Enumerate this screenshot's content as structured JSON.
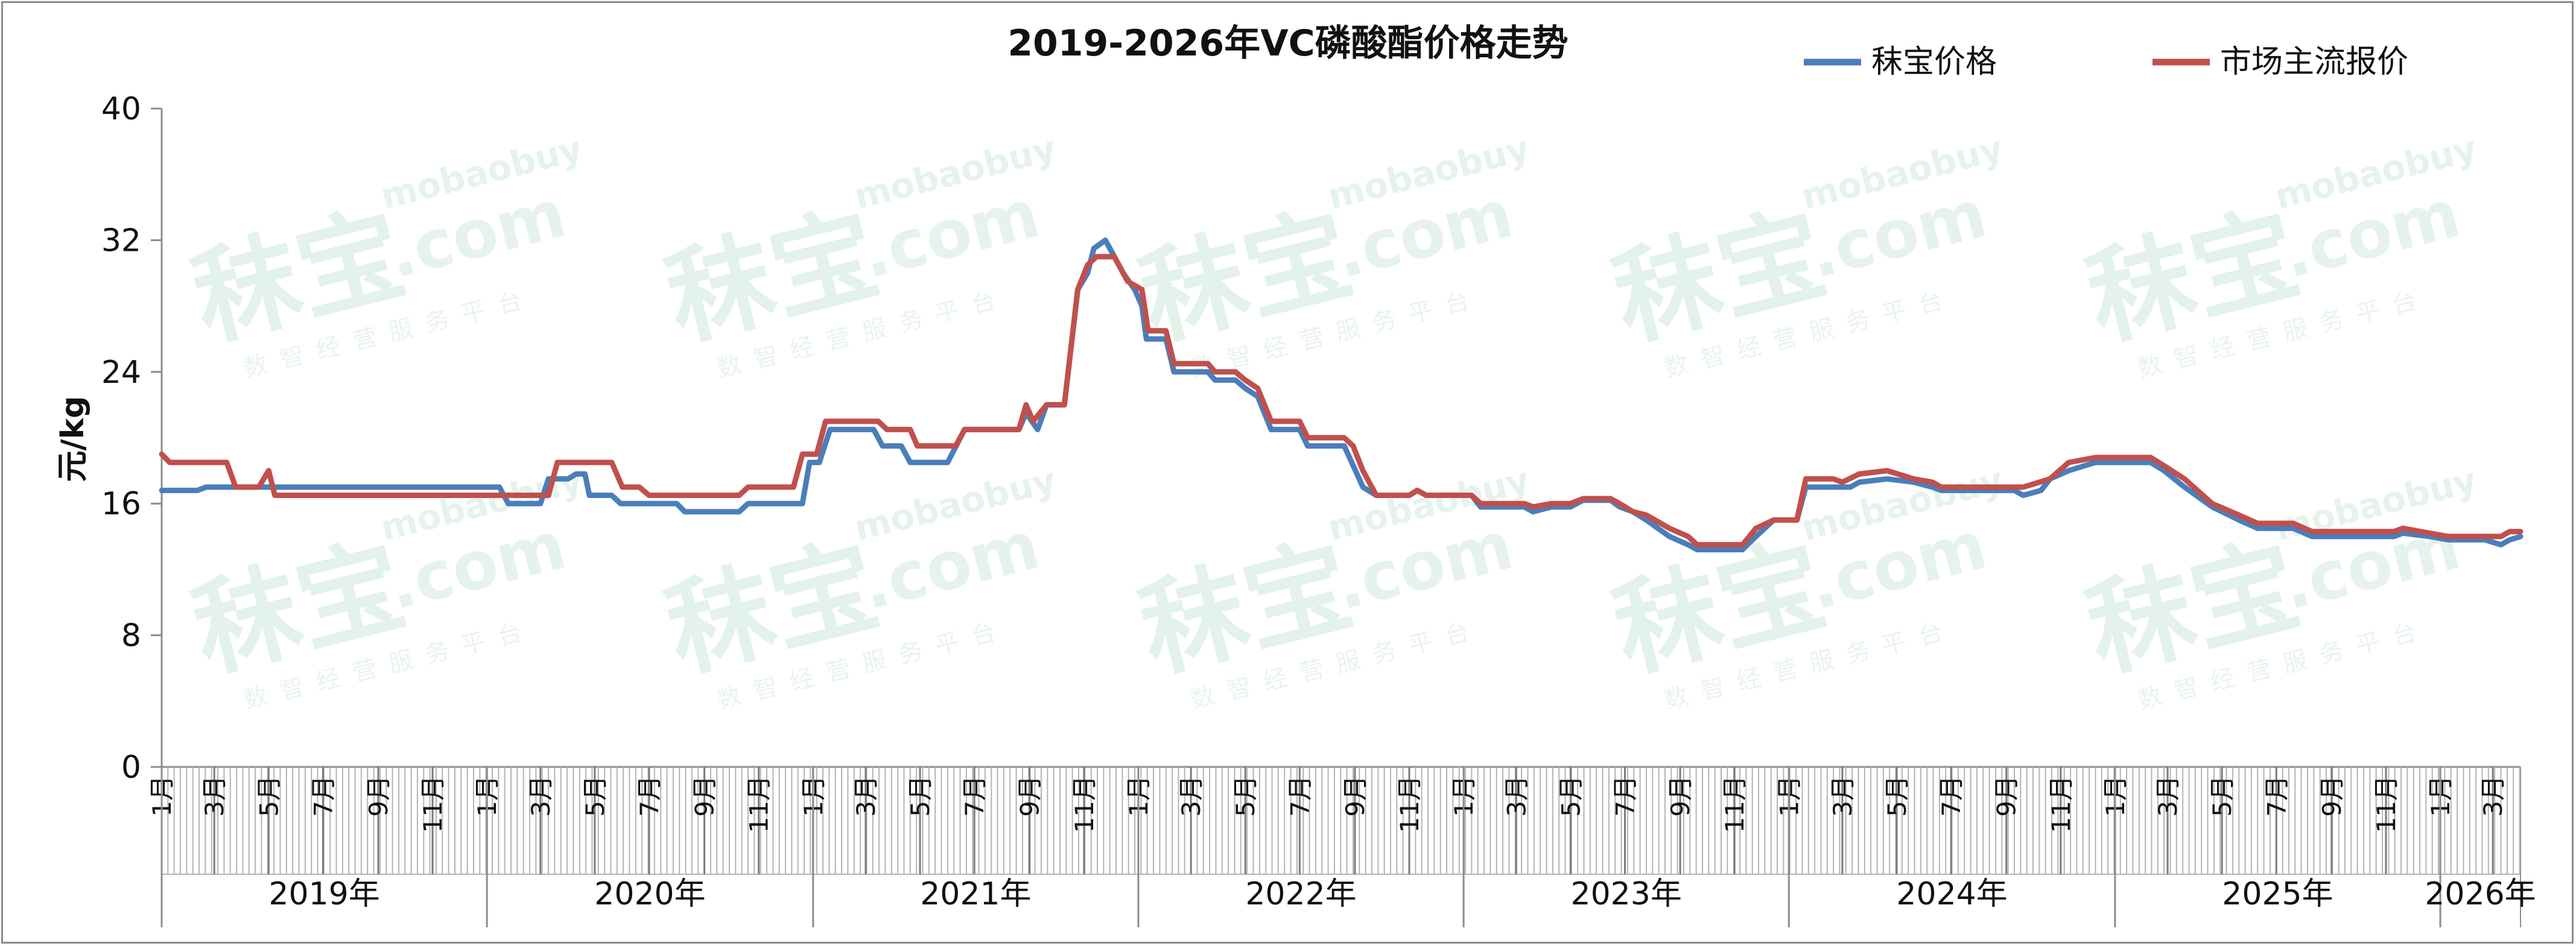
{
  "chart_data": {
    "type": "line",
    "title": "2019-2026年VC磷酸酯价格走势",
    "ylabel": "元/kg",
    "xlabel": "",
    "ylim": [
      0,
      40
    ],
    "yticks": [
      "0",
      "8",
      "16",
      "24",
      "32",
      "40"
    ],
    "grid": false,
    "legend_position": "top-right",
    "month_labels": [
      "1月",
      "3月",
      "5月",
      "7月",
      "9月",
      "11月"
    ],
    "years": [
      "2019年",
      "2020年",
      "2021年",
      "2022年",
      "2023年",
      "2024年",
      "2025年",
      "2026年"
    ],
    "x_start": "2019-01",
    "x_end": "2026-04",
    "watermark": {
      "brand": "秣宝",
      "site": ".com",
      "domain": "mobaobuy",
      "tagline": "数智经营服务平台"
    },
    "series": [
      {
        "name": "秣宝价格",
        "color": "#4a7ebb",
        "points": [
          [
            "2019-01-01",
            16.8
          ],
          [
            "2019-02-10",
            16.8
          ],
          [
            "2019-02-20",
            17.0
          ],
          [
            "2019-04-01",
            17.0
          ],
          [
            "2020-01-15",
            17.0
          ],
          [
            "2020-01-25",
            16.0
          ],
          [
            "2020-03-01",
            16.0
          ],
          [
            "2020-03-10",
            17.5
          ],
          [
            "2020-04-01",
            17.5
          ],
          [
            "2020-04-10",
            17.8
          ],
          [
            "2020-04-20",
            17.8
          ],
          [
            "2020-04-25",
            16.5
          ],
          [
            "2020-05-20",
            16.5
          ],
          [
            "2020-05-30",
            16.0
          ],
          [
            "2020-08-01",
            16.0
          ],
          [
            "2020-08-10",
            15.5
          ],
          [
            "2020-10-10",
            15.5
          ],
          [
            "2020-10-20",
            16.0
          ],
          [
            "2020-12-20",
            16.0
          ],
          [
            "2020-12-28",
            18.5
          ],
          [
            "2021-01-08",
            18.5
          ],
          [
            "2021-01-20",
            20.5
          ],
          [
            "2021-03-10",
            20.5
          ],
          [
            "2021-03-20",
            19.5
          ],
          [
            "2021-04-10",
            19.5
          ],
          [
            "2021-04-20",
            18.5
          ],
          [
            "2021-06-01",
            18.5
          ],
          [
            "2021-06-20",
            20.5
          ],
          [
            "2021-08-20",
            20.5
          ],
          [
            "2021-08-28",
            21.5
          ],
          [
            "2021-09-10",
            20.5
          ],
          [
            "2021-09-20",
            22.0
          ],
          [
            "2021-10-10",
            22.0
          ],
          [
            "2021-10-25",
            29.0
          ],
          [
            "2021-11-05",
            30.0
          ],
          [
            "2021-11-12",
            31.5
          ],
          [
            "2021-11-25",
            32.0
          ],
          [
            "2021-12-05",
            31.0
          ],
          [
            "2021-12-15",
            30.0
          ],
          [
            "2021-12-28",
            29.0
          ],
          [
            "2022-01-05",
            28.0
          ],
          [
            "2022-01-10",
            26.0
          ],
          [
            "2022-02-01",
            26.0
          ],
          [
            "2022-02-10",
            24.0
          ],
          [
            "2022-03-20",
            24.0
          ],
          [
            "2022-03-28",
            23.5
          ],
          [
            "2022-04-20",
            23.5
          ],
          [
            "2022-05-01",
            23.0
          ],
          [
            "2022-05-15",
            22.5
          ],
          [
            "2022-05-30",
            20.5
          ],
          [
            "2022-07-01",
            20.5
          ],
          [
            "2022-07-10",
            19.5
          ],
          [
            "2022-08-20",
            19.5
          ],
          [
            "2022-09-10",
            17.0
          ],
          [
            "2022-09-25",
            16.5
          ],
          [
            "2022-11-01",
            16.5
          ],
          [
            "2022-11-10",
            16.8
          ],
          [
            "2022-11-20",
            16.5
          ],
          [
            "2023-01-10",
            16.5
          ],
          [
            "2023-01-20",
            15.8
          ],
          [
            "2023-03-10",
            15.8
          ],
          [
            "2023-03-20",
            15.5
          ],
          [
            "2023-04-10",
            15.8
          ],
          [
            "2023-05-01",
            15.8
          ],
          [
            "2023-05-15",
            16.2
          ],
          [
            "2023-06-15",
            16.2
          ],
          [
            "2023-06-25",
            15.8
          ],
          [
            "2023-07-10",
            15.5
          ],
          [
            "2023-07-25",
            15.0
          ],
          [
            "2023-08-20",
            14.0
          ],
          [
            "2023-09-10",
            13.5
          ],
          [
            "2023-09-20",
            13.2
          ],
          [
            "2023-11-10",
            13.2
          ],
          [
            "2023-11-25",
            14.0
          ],
          [
            "2023-12-15",
            15.0
          ],
          [
            "2024-01-10",
            15.0
          ],
          [
            "2024-01-20",
            17.0
          ],
          [
            "2024-03-10",
            17.0
          ],
          [
            "2024-03-20",
            17.3
          ],
          [
            "2024-04-20",
            17.5
          ],
          [
            "2024-05-20",
            17.3
          ],
          [
            "2024-06-10",
            17.0
          ],
          [
            "2024-06-20",
            16.8
          ],
          [
            "2024-09-10",
            16.8
          ],
          [
            "2024-09-20",
            16.5
          ],
          [
            "2024-10-10",
            16.8
          ],
          [
            "2024-10-20",
            17.5
          ],
          [
            "2024-11-10",
            18.0
          ],
          [
            "2024-12-10",
            18.5
          ],
          [
            "2025-02-10",
            18.5
          ],
          [
            "2025-02-25",
            18.0
          ],
          [
            "2025-03-20",
            17.0
          ],
          [
            "2025-04-20",
            15.8
          ],
          [
            "2025-05-20",
            15.0
          ],
          [
            "2025-06-10",
            14.5
          ],
          [
            "2025-07-20",
            14.5
          ],
          [
            "2025-08-10",
            14.0
          ],
          [
            "2025-11-10",
            14.0
          ],
          [
            "2025-11-20",
            14.2
          ],
          [
            "2025-12-20",
            14.0
          ],
          [
            "2026-01-10",
            13.8
          ],
          [
            "2026-02-20",
            13.8
          ],
          [
            "2026-03-10",
            13.5
          ],
          [
            "2026-03-20",
            13.8
          ],
          [
            "2026-04-01",
            14.0
          ]
        ]
      },
      {
        "name": "市场主流报价",
        "color": "#c0504d",
        "points": [
          [
            "2019-01-01",
            19.0
          ],
          [
            "2019-01-10",
            18.5
          ],
          [
            "2019-03-15",
            18.5
          ],
          [
            "2019-03-25",
            17.0
          ],
          [
            "2019-04-20",
            17.0
          ],
          [
            "2019-05-01",
            18.0
          ],
          [
            "2019-05-08",
            16.5
          ],
          [
            "2020-01-20",
            16.5
          ],
          [
            "2020-03-10",
            16.5
          ],
          [
            "2020-03-20",
            18.5
          ],
          [
            "2020-05-20",
            18.5
          ],
          [
            "2020-06-01",
            17.0
          ],
          [
            "2020-06-20",
            17.0
          ],
          [
            "2020-07-01",
            16.5
          ],
          [
            "2020-10-10",
            16.5
          ],
          [
            "2020-10-20",
            17.0
          ],
          [
            "2020-12-10",
            17.0
          ],
          [
            "2020-12-20",
            19.0
          ],
          [
            "2021-01-05",
            19.0
          ],
          [
            "2021-01-15",
            21.0
          ],
          [
            "2021-03-15",
            21.0
          ],
          [
            "2021-03-25",
            20.5
          ],
          [
            "2021-04-20",
            20.5
          ],
          [
            "2021-04-28",
            19.5
          ],
          [
            "2021-06-10",
            19.5
          ],
          [
            "2021-06-20",
            20.5
          ],
          [
            "2021-08-20",
            20.5
          ],
          [
            "2021-08-28",
            22.0
          ],
          [
            "2021-09-05",
            21.0
          ],
          [
            "2021-09-20",
            22.0
          ],
          [
            "2021-10-10",
            22.0
          ],
          [
            "2021-10-25",
            29.0
          ],
          [
            "2021-11-05",
            30.5
          ],
          [
            "2021-11-15",
            31.0
          ],
          [
            "2021-12-05",
            31.0
          ],
          [
            "2021-12-20",
            29.5
          ],
          [
            "2022-01-05",
            29.0
          ],
          [
            "2022-01-12",
            26.5
          ],
          [
            "2022-02-01",
            26.5
          ],
          [
            "2022-02-10",
            24.5
          ],
          [
            "2022-03-20",
            24.5
          ],
          [
            "2022-03-28",
            24.0
          ],
          [
            "2022-04-20",
            24.0
          ],
          [
            "2022-05-01",
            23.5
          ],
          [
            "2022-05-15",
            23.0
          ],
          [
            "2022-05-30",
            21.0
          ],
          [
            "2022-07-01",
            21.0
          ],
          [
            "2022-07-10",
            20.0
          ],
          [
            "2022-08-20",
            20.0
          ],
          [
            "2022-08-30",
            19.5
          ],
          [
            "2022-09-10",
            18.0
          ],
          [
            "2022-09-25",
            16.5
          ],
          [
            "2022-11-01",
            16.5
          ],
          [
            "2022-11-10",
            16.8
          ],
          [
            "2022-11-20",
            16.5
          ],
          [
            "2023-01-10",
            16.5
          ],
          [
            "2023-01-20",
            16.0
          ],
          [
            "2023-03-10",
            16.0
          ],
          [
            "2023-03-20",
            15.8
          ],
          [
            "2023-04-10",
            16.0
          ],
          [
            "2023-05-01",
            16.0
          ],
          [
            "2023-05-15",
            16.3
          ],
          [
            "2023-06-15",
            16.3
          ],
          [
            "2023-06-25",
            16.0
          ],
          [
            "2023-07-10",
            15.5
          ],
          [
            "2023-07-25",
            15.3
          ],
          [
            "2023-08-20",
            14.5
          ],
          [
            "2023-09-10",
            14.0
          ],
          [
            "2023-09-20",
            13.5
          ],
          [
            "2023-11-10",
            13.5
          ],
          [
            "2023-11-25",
            14.5
          ],
          [
            "2023-12-15",
            15.0
          ],
          [
            "2024-01-10",
            15.0
          ],
          [
            "2024-01-20",
            17.5
          ],
          [
            "2024-02-20",
            17.5
          ],
          [
            "2024-03-01",
            17.3
          ],
          [
            "2024-03-20",
            17.8
          ],
          [
            "2024-04-20",
            18.0
          ],
          [
            "2024-05-20",
            17.5
          ],
          [
            "2024-06-10",
            17.3
          ],
          [
            "2024-06-20",
            17.0
          ],
          [
            "2024-09-20",
            17.0
          ],
          [
            "2024-10-20",
            17.5
          ],
          [
            "2024-11-10",
            18.5
          ],
          [
            "2024-12-10",
            18.8
          ],
          [
            "2025-02-10",
            18.8
          ],
          [
            "2025-02-25",
            18.3
          ],
          [
            "2025-03-20",
            17.5
          ],
          [
            "2025-04-20",
            16.0
          ],
          [
            "2025-05-20",
            15.3
          ],
          [
            "2025-06-10",
            14.8
          ],
          [
            "2025-07-20",
            14.8
          ],
          [
            "2025-08-10",
            14.3
          ],
          [
            "2025-11-10",
            14.3
          ],
          [
            "2025-11-20",
            14.5
          ],
          [
            "2025-12-20",
            14.2
          ],
          [
            "2026-01-10",
            14.0
          ],
          [
            "2026-03-10",
            14.0
          ],
          [
            "2026-03-20",
            14.3
          ],
          [
            "2026-04-01",
            14.3
          ]
        ]
      }
    ]
  }
}
